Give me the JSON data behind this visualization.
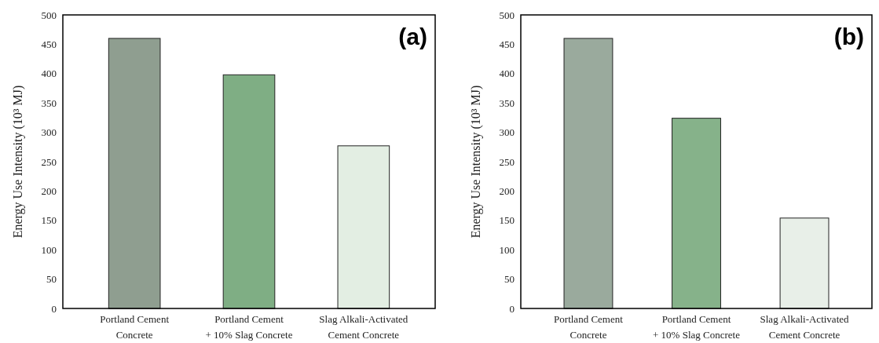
{
  "chart_data": [
    {
      "type": "bar",
      "title": "(a)",
      "ylabel": "Energy Use Intensity (10³ MJ)",
      "categories": [
        "Portland Cement\nConcrete",
        "Portland Cement\n+ 10% Slag Concrete",
        "Slag Alkali-Activated\nCement Concrete"
      ],
      "values": [
        460,
        398,
        277
      ],
      "colors": [
        "#8f9e90",
        "#7fae84",
        "#e3eee3"
      ],
      "ylim": [
        0,
        500
      ],
      "yticks": [
        0,
        50,
        100,
        150,
        200,
        250,
        300,
        350,
        400,
        450,
        500
      ]
    },
    {
      "type": "bar",
      "title": "(b)",
      "ylabel": "Energy Use Intensity (10³ MJ)",
      "categories": [
        "Portland Cement\nConcrete",
        "Portland Cement\n+ 10% Slag Concrete",
        "Slag Alkali-Activated\nCement Concrete"
      ],
      "values": [
        460,
        324,
        154
      ],
      "colors": [
        "#9aaa9d",
        "#86b28a",
        "#e8efe8"
      ],
      "ylim": [
        0,
        500
      ],
      "yticks": [
        0,
        50,
        100,
        150,
        200,
        250,
        300,
        350,
        400,
        450,
        500
      ]
    }
  ]
}
